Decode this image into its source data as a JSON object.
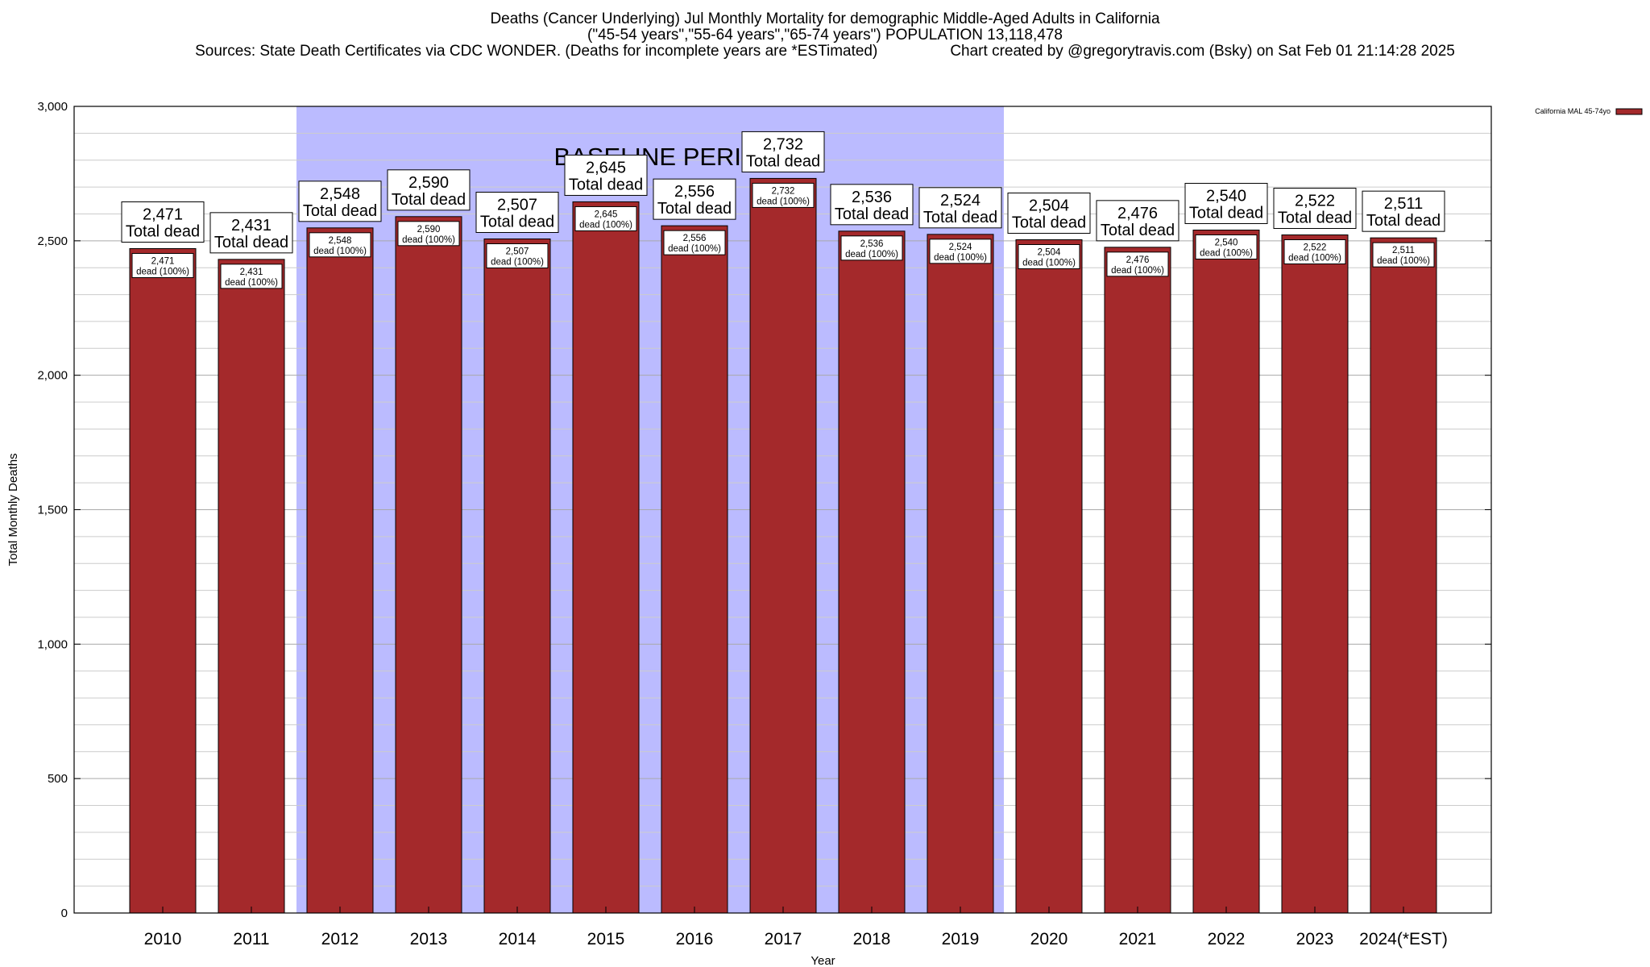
{
  "chart_data": {
    "type": "bar",
    "title": "Deaths (Cancer Underlying) Jul Monthly Mortality for demographic Middle-Aged Adults in California",
    "subtitle": "(\"45-54 years\",\"55-64 years\",\"65-74 years\") POPULATION 13,118,478",
    "sources": "Sources: State Death Certificates via CDC WONDER. (Deaths for incomplete years are *ESTimated)",
    "credit": "Chart created by @gregorytravis.com (Bsky) on Sat Feb 01 21:14:28 2025",
    "xlabel": "Year",
    "ylabel": "Total Monthly Deaths",
    "ylim": [
      0,
      3000
    ],
    "yticks": [
      0,
      500,
      1000,
      1500,
      2000,
      2500,
      3000
    ],
    "ytick_labels": [
      "0",
      "500",
      "1,000",
      "1,500",
      "2,000",
      "2,500",
      "3,000"
    ],
    "minor_grid_step": 100,
    "categories": [
      "2010",
      "2011",
      "2012",
      "2013",
      "2014",
      "2015",
      "2016",
      "2017",
      "2018",
      "2019",
      "2020",
      "2021",
      "2022",
      "2023",
      "2024(*EST)"
    ],
    "values": [
      2471,
      2431,
      2548,
      2590,
      2507,
      2645,
      2556,
      2732,
      2536,
      2524,
      2504,
      2476,
      2540,
      2522,
      2511
    ],
    "value_labels": [
      "2,471",
      "2,431",
      "2,548",
      "2,590",
      "2,507",
      "2,645",
      "2,556",
      "2,732",
      "2,536",
      "2,524",
      "2,504",
      "2,476",
      "2,540",
      "2,522",
      "2,511"
    ],
    "total_label_suffix": "Total dead",
    "inner_label_suffix": "dead (100%)",
    "baseline": {
      "label": "BASELINE PERIOD",
      "start_category": "2012",
      "end_category": "2019",
      "color": "#bbbbff"
    },
    "legend": {
      "label": "California MAL 45-74yo",
      "placement": "top-right",
      "color": "#a4292b"
    },
    "bar_color": "#a4292b",
    "grid": true
  }
}
